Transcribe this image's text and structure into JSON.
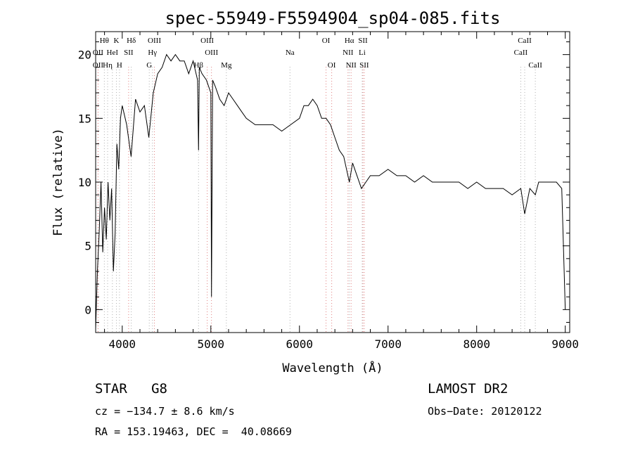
{
  "chart_data": {
    "type": "line",
    "title": "spec-55949-F5594904_sp04-085.fits",
    "xlabel": "Wavelength (Å)",
    "ylabel": "Flux (relative)",
    "xlim": [
      3700,
      9050
    ],
    "ylim": [
      -1.8,
      21.8
    ],
    "xticks": [
      4000,
      5000,
      6000,
      7000,
      8000,
      9000
    ],
    "yticks": [
      0,
      5,
      10,
      15,
      20
    ],
    "grid": false,
    "series": [
      {
        "x": [
          3700,
          3720,
          3740,
          3760,
          3780,
          3800,
          3820,
          3840,
          3860,
          3880,
          3900,
          3920,
          3940,
          3960,
          3980,
          4000,
          4050,
          4100,
          4150,
          4200,
          4250,
          4300,
          4350,
          4400,
          4450,
          4500,
          4550,
          4600,
          4650,
          4700,
          4750,
          4800,
          4850,
          4861,
          4870,
          4900,
          4950,
          5000,
          5007,
          5020,
          5050,
          5100,
          5150,
          5200,
          5250,
          5300,
          5350,
          5400,
          5500,
          5600,
          5700,
          5800,
          5900,
          6000,
          6050,
          6100,
          6150,
          6200,
          6250,
          6300,
          6350,
          6400,
          6450,
          6500,
          6563,
          6600,
          6650,
          6700,
          6750,
          6800,
          6900,
          7000,
          7100,
          7200,
          7300,
          7400,
          7500,
          7600,
          7700,
          7800,
          7900,
          8000,
          8100,
          8200,
          8300,
          8400,
          8498,
          8542,
          8600,
          8662,
          8700,
          8800,
          8900,
          8960,
          9000
        ],
        "y": [
          -1.5,
          3.0,
          6.0,
          10.0,
          4.5,
          8.0,
          5.5,
          10.0,
          7.0,
          9.5,
          3.0,
          6.0,
          13.0,
          11.0,
          15.0,
          16.0,
          14.5,
          12.0,
          16.5,
          15.5,
          16.0,
          13.5,
          17.0,
          18.5,
          19.0,
          20.0,
          19.5,
          20.0,
          19.5,
          19.5,
          18.5,
          19.5,
          18.0,
          12.5,
          19.0,
          18.5,
          18.0,
          17.0,
          1.0,
          18.0,
          17.5,
          16.5,
          16.0,
          17.0,
          16.5,
          16.0,
          15.5,
          15.0,
          14.5,
          14.5,
          14.5,
          14.0,
          14.5,
          15.0,
          16.0,
          16.0,
          16.5,
          16.0,
          15.0,
          15.0,
          14.5,
          13.5,
          12.5,
          12.0,
          10.0,
          11.5,
          10.5,
          9.5,
          10.0,
          10.5,
          10.5,
          11.0,
          10.5,
          10.5,
          10.0,
          10.5,
          10.0,
          10.0,
          10.0,
          10.0,
          9.5,
          10.0,
          9.5,
          9.5,
          9.5,
          9.0,
          9.5,
          7.5,
          9.5,
          9.0,
          10.0,
          10.0,
          10.0,
          9.5,
          0.0
        ]
      }
    ],
    "lines": [
      {
        "label": "Hθ",
        "x": 3798,
        "color": "#b0b0b0",
        "row": 0
      },
      {
        "label": "K",
        "x": 3934,
        "color": "#b0b0b0",
        "row": 0
      },
      {
        "label": "Hδ",
        "x": 4102,
        "color": "#b0b0b0",
        "row": 0
      },
      {
        "label": "OII",
        "x": 3727,
        "color": "#e08080",
        "row": 1
      },
      {
        "label": "HeI",
        "x": 3889,
        "color": "#b0b0b0",
        "row": 1
      },
      {
        "label": "SII",
        "x": 4072,
        "color": "#e08080",
        "row": 1
      },
      {
        "label": "OII",
        "x": 3727,
        "color": "#e08080",
        "row": 2
      },
      {
        "label": "Hη",
        "x": 3835,
        "color": "#b0b0b0",
        "row": 2
      },
      {
        "label": "H",
        "x": 3969,
        "color": "#b0b0b0",
        "row": 2
      },
      {
        "label": "OIII",
        "x": 4363,
        "color": "#e08080",
        "row": 0
      },
      {
        "label": "Hγ",
        "x": 4341,
        "color": "#b0b0b0",
        "row": 1
      },
      {
        "label": "G",
        "x": 4305,
        "color": "#b0b0b0",
        "row": 2
      },
      {
        "label": "OIII",
        "x": 4959,
        "color": "#e08080",
        "row": 0
      },
      {
        "label": "OIII",
        "x": 5007,
        "color": "#e08080",
        "row": 1
      },
      {
        "label": "Hβ",
        "x": 4861,
        "color": "#b0b0b0",
        "row": 2
      },
      {
        "label": "Mg",
        "x": 5175,
        "color": "#b0b0b0",
        "row": 2
      },
      {
        "label": "Na",
        "x": 5893,
        "color": "#b0b0b0",
        "row": 1
      },
      {
        "label": "OI",
        "x": 6300,
        "color": "#e08080",
        "row": 0
      },
      {
        "label": "OI",
        "x": 6364,
        "color": "#e08080",
        "row": 2
      },
      {
        "label": "Hα",
        "x": 6563,
        "color": "#b0b0b0",
        "row": 0
      },
      {
        "label": "SII",
        "x": 6716,
        "color": "#e08080",
        "row": 0
      },
      {
        "label": "NII",
        "x": 6548,
        "color": "#e08080",
        "row": 1
      },
      {
        "label": "Li",
        "x": 6708,
        "color": "#b0b0b0",
        "row": 1
      },
      {
        "label": "NII",
        "x": 6583,
        "color": "#e08080",
        "row": 2
      },
      {
        "label": "SII",
        "x": 6731,
        "color": "#e08080",
        "row": 2
      },
      {
        "label": "CaII",
        "x": 8498,
        "color": "#b0b0b0",
        "row": 1
      },
      {
        "label": "CaII",
        "x": 8542,
        "color": "#b0b0b0",
        "row": 0
      },
      {
        "label": "CaII",
        "x": 8662,
        "color": "#b0b0b0",
        "row": 2
      }
    ]
  },
  "info": {
    "object": "STAR   G8",
    "cz": "cz = −134.7 ± 8.6 km/s",
    "coords": "RA = 153.19463, DEC =  40.08669",
    "survey": "LAMOST DR2",
    "obs_date": "Obs−Date: 20120122"
  }
}
